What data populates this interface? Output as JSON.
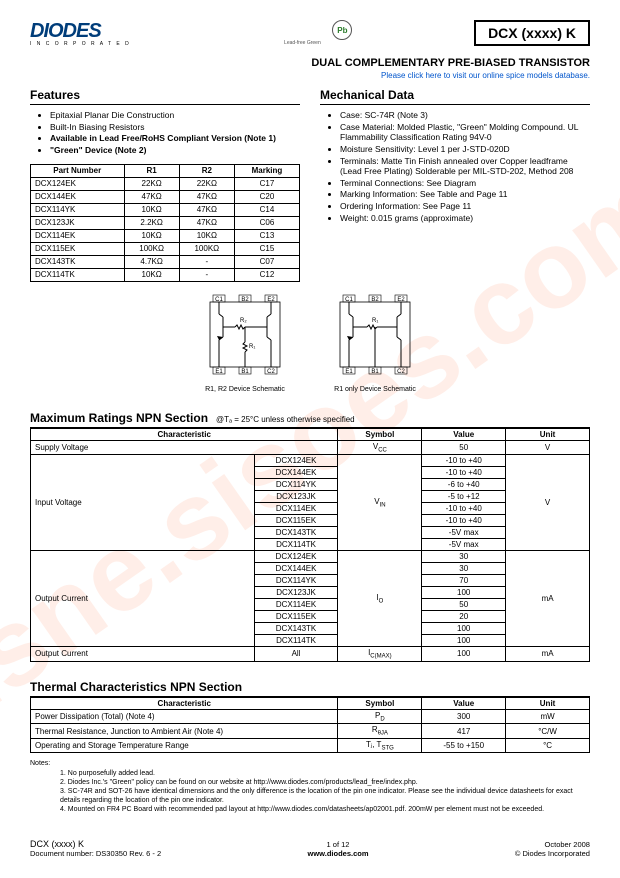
{
  "logo_text": "DIODES",
  "logo_sub": "I N C O R P O R A T E D",
  "pb_symbol": "Pb",
  "pb_label": "Lead-free Green",
  "part_box": "DCX (xxxx) K",
  "subtitle": "DUAL COMPLEMENTARY PRE-BIASED TRANSISTOR",
  "spice_link": "Please click here to visit our online spice models database.",
  "features_title": "Features",
  "features": [
    {
      "text": "Epitaxial Planar Die Construction",
      "bold": false
    },
    {
      "text": "Built-In Biasing Resistors",
      "bold": false
    },
    {
      "text": "Available in Lead Free/RoHS Compliant Version (Note 1)",
      "bold": true
    },
    {
      "text": "\"Green\" Device (Note 2)",
      "bold": true
    }
  ],
  "part_table": {
    "headers": [
      "Part Number",
      "R1",
      "R2",
      "Marking"
    ],
    "rows": [
      [
        "DCX124EK",
        "22KΩ",
        "22KΩ",
        "C17"
      ],
      [
        "DCX144EK",
        "47KΩ",
        "47KΩ",
        "C20"
      ],
      [
        "DCX114YK",
        "10KΩ",
        "47KΩ",
        "C14"
      ],
      [
        "DCX123JK",
        "2.2KΩ",
        "47KΩ",
        "C06"
      ],
      [
        "DCX114EK",
        "10KΩ",
        "10KΩ",
        "C13"
      ],
      [
        "DCX115EK",
        "100KΩ",
        "100KΩ",
        "C15"
      ],
      [
        "DCX143TK",
        "4.7KΩ",
        "-",
        "C07"
      ],
      [
        "DCX114TK",
        "10KΩ",
        "-",
        "C12"
      ]
    ]
  },
  "mech_title": "Mechanical Data",
  "mech": [
    "Case: SC-74R (Note 3)",
    "Case Material: Molded Plastic, \"Green\" Molding Compound. UL Flammability Classification Rating 94V-0",
    "Moisture Sensitivity: Level 1 per J-STD-020D",
    "Terminals: Matte Tin Finish annealed over Copper leadframe (Lead Free Plating) Solderable per MIL-STD-202, Method 208",
    "Terminal Connections: See Diagram",
    "Marking Information: See Table and Page 11",
    "Ordering Information: See Page 11",
    "Weight: 0.015 grams (approximate)"
  ],
  "diag1_label": "R1, R2 Device Schematic",
  "diag2_label": "R1 only Device Schematic",
  "pins": {
    "c1": "C1",
    "b2": "B2",
    "e2": "E2",
    "e1": "E1",
    "b1": "B1",
    "c2": "C2",
    "r1": "R₁",
    "r2": "R₂"
  },
  "max_title": "Maximum Ratings NPN Section",
  "max_sub": "@Tₐ = 25°C unless otherwise specified",
  "max_headers": [
    "Characteristic",
    "Symbol",
    "Value",
    "Unit"
  ],
  "max_rows": {
    "supply": {
      "char": "Supply Voltage",
      "sym": "V",
      "sub": "CC",
      "val": "50",
      "unit": "V"
    },
    "input": {
      "char": "Input Voltage",
      "sym": "V",
      "sub": "IN",
      "unit": "V",
      "parts": [
        "DCX124EK",
        "DCX144EK",
        "DCX114YK",
        "DCX123JK",
        "DCX114EK",
        "DCX115EK",
        "DCX143TK",
        "DCX114TK"
      ],
      "vals": [
        "-10 to +40",
        "-10 to +40",
        "-6 to +40",
        "-5 to +12",
        "-10 to +40",
        "-10 to +40",
        "-5V max",
        "-5V max"
      ]
    },
    "output": {
      "char": "Output Current",
      "sym": "I",
      "sub": "O",
      "unit": "mA",
      "parts": [
        "DCX124EK",
        "DCX144EK",
        "DCX114YK",
        "DCX123JK",
        "DCX114EK",
        "DCX115EK",
        "DCX143TK",
        "DCX114TK"
      ],
      "vals": [
        "30",
        "30",
        "70",
        "100",
        "50",
        "20",
        "100",
        "100"
      ]
    },
    "output_max": {
      "char": "Output Current",
      "parts": "All",
      "sym": "I",
      "sub": "C(MAX)",
      "val": "100",
      "unit": "mA"
    }
  },
  "thermal_title": "Thermal Characteristics NPN Section",
  "thermal_headers": [
    "Characteristic",
    "Symbol",
    "Value",
    "Unit"
  ],
  "thermal_rows": [
    {
      "char": "Power Dissipation (Total)  (Note 4)",
      "sym": "P",
      "sub": "D",
      "val": "300",
      "unit": "mW"
    },
    {
      "char": "Thermal Resistance, Junction to Ambient Air  (Note 4)",
      "sym": "R",
      "sub": "θJA",
      "val": "417",
      "unit": "°C/W"
    },
    {
      "char": "Operating and Storage Temperature Range",
      "sym": "Tⱼ, T",
      "sub": "STG",
      "val": "-55 to +150",
      "unit": "°C"
    }
  ],
  "notes_label": "Notes:",
  "notes": [
    "1.  No purposefully added lead.",
    "2.  Diodes Inc.'s \"Green\" policy can be found on our website at http://www.diodes.com/products/lead_free/index.php.",
    "3.  SC-74R and SOT-26 have identical dimensions and the only difference is the location of the pin one indicator. Please see the individual device datasheets for exact details regarding the location of the pin one indicator.",
    "4.  Mounted on FR4 PC Board with recommended pad layout at http://www.diodes.com/datasheets/ap02001.pdf. 200mW per element must not be exceeded."
  ],
  "footer": {
    "left_part": "DCX (xxxx) K",
    "left_doc": "Document number: DS30350 Rev. 6 - 2",
    "center_page": "1 of 12",
    "center_url": "www.diodes.com",
    "right_date": "October 2008",
    "right_copy": "© Diodes Incorporated"
  }
}
